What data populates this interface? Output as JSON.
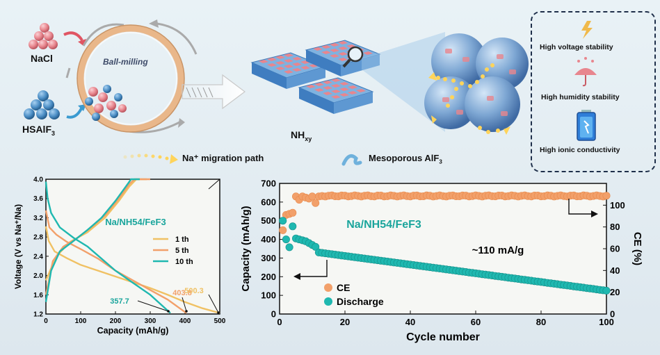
{
  "top": {
    "nacl_label": "NaCl",
    "hsalf3_label": "HSAlF",
    "hsalf3_sub": "3",
    "ballmill_label": "Ball-milling",
    "nh_label": "NH",
    "nh_sub": "xy",
    "legend_path": "Na⁺ migration path",
    "legend_meso": "Mesoporous AlF",
    "legend_meso_sub": "3",
    "props": [
      "High voltage stability",
      "High humidity stability",
      "High ionic conductivity"
    ]
  },
  "colors": {
    "sphere": "#e8868e",
    "crystal": "#4d8fc6",
    "teal": "#1fb8b0",
    "orange": "#f2a06a",
    "yellow": "#f0c163"
  },
  "chart_data": [
    {
      "type": "line",
      "title": "Na/NH54/FeF3",
      "xlabel": "Capacity (mAh/g)",
      "ylabel": "Voltage (V vs Na⁺/Na)",
      "xlim": [
        0,
        500
      ],
      "ylim": [
        1.2,
        4.0
      ],
      "xticks": [
        0,
        100,
        200,
        300,
        400,
        500
      ],
      "yticks": [
        1.2,
        1.6,
        2.0,
        2.4,
        2.8,
        3.2,
        3.6,
        4.0
      ],
      "series": [
        {
          "name": "1 th",
          "color": "#f0c163",
          "discharge": [
            [
              0,
              3.02
            ],
            [
              8,
              2.72
            ],
            [
              25,
              2.5
            ],
            [
              60,
              2.36
            ],
            [
              100,
              2.22
            ],
            [
              150,
              2.1
            ],
            [
              200,
              1.98
            ],
            [
              250,
              1.86
            ],
            [
              300,
              1.74
            ],
            [
              350,
              1.6
            ],
            [
              400,
              1.45
            ],
            [
              450,
              1.32
            ],
            [
              500,
              1.22
            ]
          ],
          "charge": [
            [
              0,
              1.9
            ],
            [
              30,
              2.4
            ],
            [
              70,
              2.7
            ],
            [
              120,
              2.9
            ],
            [
              170,
              3.2
            ],
            [
              210,
              3.55
            ],
            [
              240,
              3.85
            ],
            [
              260,
              4.0
            ],
            [
              290,
              4.0
            ]
          ]
        },
        {
          "name": "5 th",
          "color": "#f2a06a",
          "discharge": [
            [
              0,
              3.35
            ],
            [
              10,
              3.0
            ],
            [
              30,
              2.85
            ],
            [
              60,
              2.7
            ],
            [
              100,
              2.55
            ],
            [
              150,
              2.35
            ],
            [
              200,
              2.1
            ],
            [
              250,
              1.9
            ],
            [
              300,
              1.7
            ],
            [
              350,
              1.5
            ],
            [
              404,
              1.22
            ]
          ],
          "charge": [
            [
              0,
              1.6
            ],
            [
              20,
              2.3
            ],
            [
              50,
              2.6
            ],
            [
              90,
              2.78
            ],
            [
              130,
              3.0
            ],
            [
              170,
              3.25
            ],
            [
              210,
              3.6
            ],
            [
              240,
              3.9
            ],
            [
              255,
              4.0
            ],
            [
              300,
              4.0
            ]
          ]
        },
        {
          "name": "10 th",
          "color": "#1fb8b0",
          "discharge": [
            [
              0,
              3.95
            ],
            [
              5,
              3.6
            ],
            [
              15,
              3.3
            ],
            [
              40,
              3.0
            ],
            [
              80,
              2.78
            ],
            [
              120,
              2.6
            ],
            [
              160,
              2.35
            ],
            [
              200,
              2.1
            ],
            [
              250,
              1.85
            ],
            [
              300,
              1.6
            ],
            [
              358,
              1.22
            ]
          ],
          "charge": [
            [
              0,
              1.45
            ],
            [
              15,
              2.1
            ],
            [
              40,
              2.5
            ],
            [
              80,
              2.72
            ],
            [
              120,
              2.95
            ],
            [
              160,
              3.2
            ],
            [
              200,
              3.55
            ],
            [
              230,
              3.85
            ],
            [
              245,
              4.0
            ],
            [
              270,
              4.0
            ]
          ]
        }
      ],
      "annotations": [
        "357.7",
        "403.8",
        "500.3"
      ]
    },
    {
      "type": "scatter",
      "title": "Na/NH54/FeF3",
      "annotation": "~110 mA/g",
      "xlabel": "Cycle number",
      "ylabel": "Capacity (mAh/g)",
      "ylabel_right": "CE (%)",
      "xlim": [
        0,
        100
      ],
      "ylim": [
        0,
        700
      ],
      "ylim_right": [
        0,
        120
      ],
      "xticks": [
        0,
        20,
        40,
        60,
        80,
        100
      ],
      "yticks": [
        0,
        100,
        200,
        300,
        400,
        500,
        600,
        700
      ],
      "yticks_right": [
        0,
        20,
        40,
        60,
        80,
        100
      ],
      "ce_series": {
        "name": "CE",
        "color": "#f2a06a",
        "start_points": [
          [
            1,
            77
          ],
          [
            2,
            91
          ],
          [
            3,
            92
          ],
          [
            4,
            93
          ],
          [
            5,
            108
          ],
          [
            6,
            105
          ],
          [
            7,
            108
          ],
          [
            8,
            107
          ],
          [
            9,
            106
          ],
          [
            10,
            108
          ],
          [
            11,
            102
          ],
          [
            12,
            108
          ]
        ],
        "steady_value": 108.5
      },
      "discharge_series": {
        "name": "Discharge",
        "color": "#1fb8b0",
        "start_points": [
          [
            1,
            500
          ],
          [
            2,
            400
          ],
          [
            3,
            358
          ],
          [
            4,
            470
          ],
          [
            5,
            405
          ],
          [
            6,
            400
          ],
          [
            7,
            395
          ],
          [
            8,
            390
          ],
          [
            9,
            380
          ],
          [
            10,
            370
          ],
          [
            11,
            360
          ]
        ],
        "end_value_at_100": 125,
        "value_at_12": 330
      }
    }
  ]
}
